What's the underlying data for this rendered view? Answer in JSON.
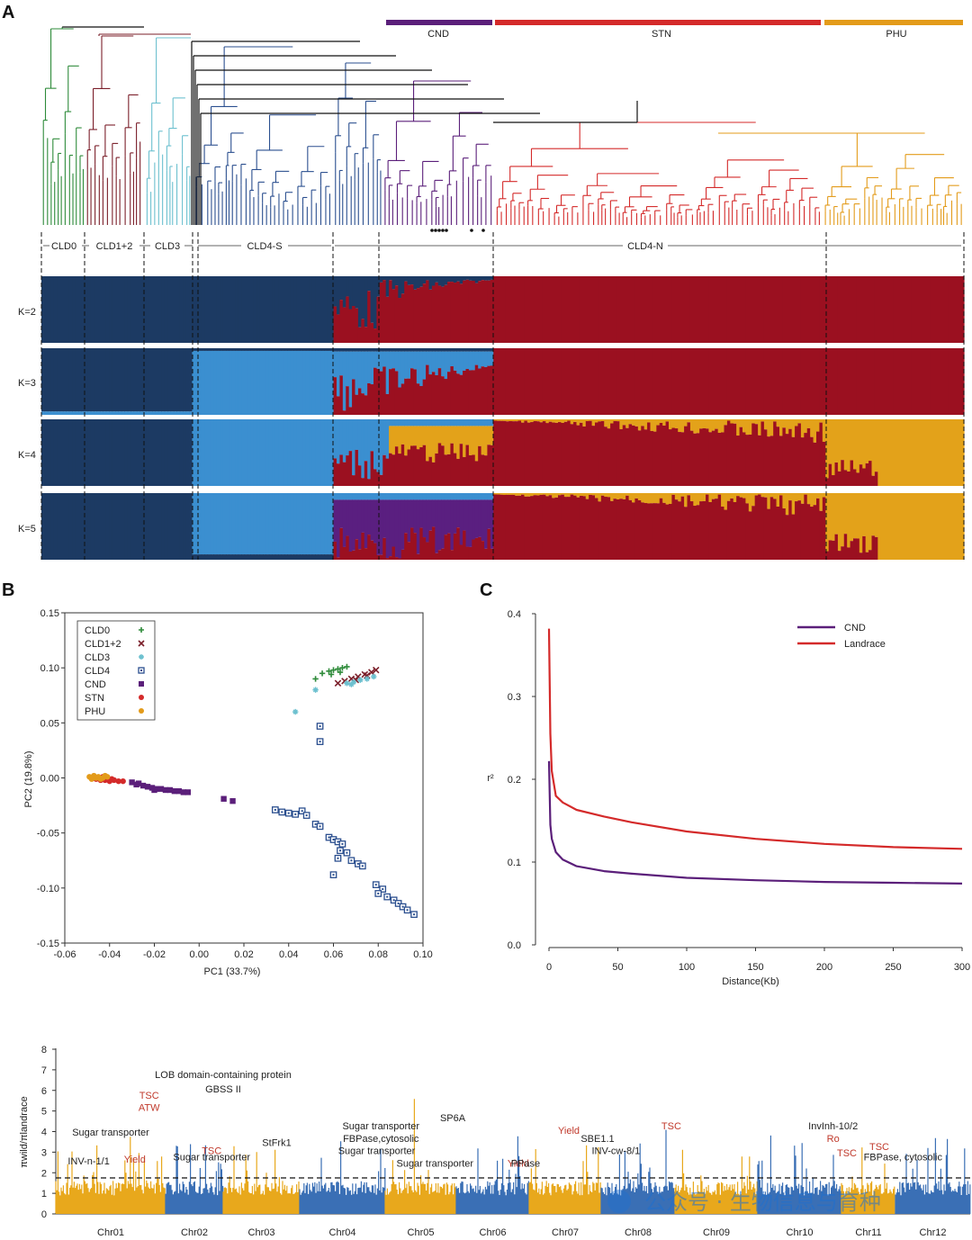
{
  "colors": {
    "cld0": "#2e8b3a",
    "cld12": "#7b1f2a",
    "cld3": "#6cc0cf",
    "cld4": "#2b4f8f",
    "cnd": "#5b1f7a",
    "stn": "#d42a2a",
    "phu": "#e39b1a",
    "k_navy": "#1c3a63",
    "k_sky": "#3b8fd0",
    "k_red": "#9b1020",
    "k_gold": "#e3a21a",
    "k_purple": "#5a1f80",
    "manh_gold": "#e8a81c",
    "manh_blue": "#3a6fb5"
  },
  "panelA": {
    "letter": "A",
    "groups_top": [
      "CND",
      "STN",
      "PHU"
    ],
    "clusters": [
      "CLD0",
      "CLD1+2",
      "CLD3",
      "CLD4-S",
      "CLD4-N"
    ],
    "k_labels": [
      "K=2",
      "K=3",
      "K=4",
      "K=5"
    ]
  },
  "panelB": {
    "letter": "B"
  },
  "panelC": {
    "letter": "C"
  },
  "chart_data": [
    {
      "type": "scatter",
      "id": "pca",
      "xlabel": "PC1 (33.7%)",
      "ylabel": "PC2 (19.8%)",
      "xlim": [
        -0.06,
        0.1
      ],
      "ylim": [
        -0.15,
        0.15
      ],
      "xticks": [
        "-0.06",
        "-0.04",
        "-0.02",
        "0.00",
        "0.02",
        "0.04",
        "0.06",
        "0.08",
        "0.10"
      ],
      "yticks": [
        "0.15",
        "0.10",
        "0.05",
        "0.00",
        "-0.05",
        "-0.10",
        "-0.15"
      ],
      "legend": [
        "CLD0",
        "CLD1+2",
        "CLD3",
        "CLD4",
        "CND",
        "STN",
        "PHU"
      ],
      "series": [
        {
          "name": "CLD0",
          "marker": "plus",
          "color": "#2e8b3a",
          "points": [
            [
              0.055,
              0.095
            ],
            [
              0.058,
              0.097
            ],
            [
              0.06,
              0.098
            ],
            [
              0.062,
              0.099
            ],
            [
              0.064,
              0.1
            ],
            [
              0.066,
              0.101
            ],
            [
              0.059,
              0.094
            ],
            [
              0.063,
              0.096
            ],
            [
              0.052,
              0.09
            ]
          ]
        },
        {
          "name": "CLD1+2",
          "marker": "x",
          "color": "#7b1f2a",
          "points": [
            [
              0.062,
              0.086
            ],
            [
              0.065,
              0.088
            ],
            [
              0.068,
              0.09
            ],
            [
              0.071,
              0.092
            ],
            [
              0.074,
              0.094
            ],
            [
              0.077,
              0.096
            ],
            [
              0.079,
              0.098
            ],
            [
              0.075,
              0.093
            ],
            [
              0.07,
              0.089
            ]
          ]
        },
        {
          "name": "CLD3",
          "marker": "star",
          "color": "#6cc0cf",
          "points": [
            [
              0.043,
              0.06
            ],
            [
              0.052,
              0.08
            ],
            [
              0.066,
              0.086
            ],
            [
              0.069,
              0.087
            ],
            [
              0.072,
              0.089
            ],
            [
              0.075,
              0.09
            ],
            [
              0.078,
              0.092
            ],
            [
              0.068,
              0.085
            ]
          ]
        },
        {
          "name": "CLD4",
          "marker": "square-open",
          "color": "#2b4f8f",
          "points": [
            [
              0.054,
              0.047
            ],
            [
              0.054,
              0.033
            ],
            [
              0.034,
              -0.029
            ],
            [
              0.037,
              -0.031
            ],
            [
              0.04,
              -0.032
            ],
            [
              0.043,
              -0.033
            ],
            [
              0.046,
              -0.03
            ],
            [
              0.048,
              -0.034
            ],
            [
              0.052,
              -0.042
            ],
            [
              0.054,
              -0.044
            ],
            [
              0.058,
              -0.054
            ],
            [
              0.06,
              -0.056
            ],
            [
              0.062,
              -0.058
            ],
            [
              0.064,
              -0.06
            ],
            [
              0.063,
              -0.066
            ],
            [
              0.066,
              -0.068
            ],
            [
              0.068,
              -0.075
            ],
            [
              0.071,
              -0.078
            ],
            [
              0.073,
              -0.08
            ],
            [
              0.062,
              -0.073
            ],
            [
              0.06,
              -0.088
            ],
            [
              0.079,
              -0.097
            ],
            [
              0.082,
              -0.101
            ],
            [
              0.08,
              -0.105
            ],
            [
              0.084,
              -0.108
            ],
            [
              0.087,
              -0.111
            ],
            [
              0.089,
              -0.114
            ],
            [
              0.091,
              -0.117
            ],
            [
              0.093,
              -0.12
            ],
            [
              0.096,
              -0.124
            ]
          ]
        },
        {
          "name": "CND",
          "marker": "square",
          "color": "#5b1f7a",
          "points": [
            [
              -0.03,
              -0.004
            ],
            [
              -0.027,
              -0.005
            ],
            [
              -0.025,
              -0.007
            ],
            [
              -0.023,
              -0.008
            ],
            [
              -0.021,
              -0.009
            ],
            [
              -0.019,
              -0.01
            ],
            [
              -0.017,
              -0.01
            ],
            [
              -0.015,
              -0.011
            ],
            [
              -0.013,
              -0.011
            ],
            [
              -0.011,
              -0.012
            ],
            [
              -0.009,
              -0.012
            ],
            [
              -0.007,
              -0.013
            ],
            [
              -0.005,
              -0.013
            ],
            [
              -0.028,
              -0.006
            ],
            [
              -0.02,
              -0.011
            ],
            [
              0.011,
              -0.019
            ],
            [
              0.015,
              -0.021
            ]
          ]
        },
        {
          "name": "STN",
          "marker": "circle",
          "color": "#d42a2a",
          "points": [
            [
              -0.048,
              0.0
            ],
            [
              -0.046,
              -0.001
            ],
            [
              -0.044,
              -0.002
            ],
            [
              -0.042,
              -0.002
            ],
            [
              -0.04,
              -0.003
            ],
            [
              -0.038,
              -0.002
            ],
            [
              -0.036,
              -0.003
            ],
            [
              -0.034,
              -0.003
            ],
            [
              -0.043,
              0.001
            ],
            [
              -0.039,
              -0.001
            ]
          ]
        },
        {
          "name": "PHU",
          "marker": "circle",
          "color": "#e39b1a",
          "points": [
            [
              -0.049,
              0.001
            ],
            [
              -0.047,
              0.002
            ],
            [
              -0.045,
              0.001
            ],
            [
              -0.043,
              0.0
            ],
            [
              -0.041,
              0.001
            ],
            [
              -0.046,
              0.0
            ],
            [
              -0.044,
              -0.001
            ],
            [
              -0.048,
              -0.001
            ],
            [
              -0.042,
              0.002
            ]
          ]
        }
      ]
    },
    {
      "type": "line",
      "id": "ld",
      "xlabel": "Distance(Kb)",
      "ylabel": "r²",
      "xlim": [
        0,
        300
      ],
      "ylim": [
        0.0,
        0.4
      ],
      "xticks": [
        "0",
        "50",
        "100",
        "150",
        "200",
        "250",
        "300"
      ],
      "yticks": [
        "0.4",
        "0.3",
        "0.2",
        "0.1",
        "0.0"
      ],
      "series": [
        {
          "name": "CND",
          "color": "#5b1f7a",
          "x": [
            0,
            1,
            2,
            5,
            10,
            20,
            40,
            60,
            100,
            150,
            200,
            250,
            300
          ],
          "values": [
            0.222,
            0.145,
            0.128,
            0.112,
            0.103,
            0.095,
            0.089,
            0.086,
            0.081,
            0.078,
            0.076,
            0.075,
            0.074
          ]
        },
        {
          "name": "Landrace",
          "color": "#d42a2a",
          "x": [
            0,
            1,
            2,
            5,
            10,
            20,
            40,
            60,
            100,
            150,
            200,
            250,
            300
          ],
          "values": [
            0.382,
            0.255,
            0.21,
            0.18,
            0.172,
            0.163,
            0.155,
            0.148,
            0.137,
            0.128,
            0.122,
            0.118,
            0.116
          ]
        }
      ]
    },
    {
      "type": "bar",
      "id": "diversity",
      "ylabel": "πwild/πlandrace",
      "ylim": [
        0,
        8
      ],
      "yticks": [
        "8",
        "7",
        "6",
        "5",
        "4",
        "3",
        "2",
        "1",
        "0"
      ],
      "threshold": 1.75,
      "categories": [
        "Chr01",
        "Chr02",
        "Chr03",
        "Chr04",
        "Chr05",
        "Chr06",
        "Chr07",
        "Chr08",
        "Chr09",
        "Chr10",
        "Chr11",
        "Chr12"
      ],
      "annotations": [
        {
          "text": "TSC",
          "red": true,
          "chr": "Chr01",
          "pos": 0.85,
          "y": 5.6
        },
        {
          "text": "ATW",
          "red": true,
          "chr": "Chr01",
          "pos": 0.85,
          "y": 5.0
        },
        {
          "text": "Sugar transporter",
          "red": false,
          "chr": "Chr01",
          "pos": 0.5,
          "y": 3.8
        },
        {
          "text": "Yield",
          "red": true,
          "chr": "Chr01",
          "pos": 0.72,
          "y": 2.5
        },
        {
          "text": "INV-n-1/1",
          "red": false,
          "chr": "Chr01",
          "pos": 0.3,
          "y": 2.4
        },
        {
          "text": "TSC",
          "red": true,
          "chr": "Chr02",
          "pos": 0.8,
          "y": 2.9
        },
        {
          "text": "Sugar transporter",
          "red": false,
          "chr": "Chr02",
          "pos": 0.8,
          "y": 2.6
        },
        {
          "text": "LOB domain-containing protein",
          "red": false,
          "chr": "Chr02",
          "pos": 1.0,
          "y": 6.6
        },
        {
          "text": "GBSS II",
          "red": false,
          "chr": "Chr02",
          "pos": 1.0,
          "y": 5.9
        },
        {
          "text": "StFrk1",
          "red": false,
          "chr": "Chr03",
          "pos": 0.7,
          "y": 3.3
        },
        {
          "text": "Sugar transporter",
          "red": false,
          "chr": "Chr04",
          "pos": 0.95,
          "y": 4.1
        },
        {
          "text": "FBPase,cytosolic",
          "red": false,
          "chr": "Chr04",
          "pos": 0.95,
          "y": 3.5
        },
        {
          "text": "Sugar transporter",
          "red": false,
          "chr": "Chr04",
          "pos": 0.9,
          "y": 2.9
        },
        {
          "text": "SP6A",
          "red": false,
          "chr": "Chr05",
          "pos": 0.95,
          "y": 4.5
        },
        {
          "text": "Sugar transporter",
          "red": false,
          "chr": "Chr05",
          "pos": 0.7,
          "y": 2.3
        },
        {
          "text": "Yield",
          "red": true,
          "chr": "Chr06",
          "pos": 0.85,
          "y": 2.3
        },
        {
          "text": "PPase",
          "red": false,
          "chr": "Chr06",
          "pos": 0.95,
          "y": 2.3
        },
        {
          "text": "Yield",
          "red": true,
          "chr": "Chr07",
          "pos": 0.55,
          "y": 3.9
        },
        {
          "text": "SBE1.1",
          "red": false,
          "chr": "Chr07",
          "pos": 0.95,
          "y": 3.5
        },
        {
          "text": "INV-cw-8/1",
          "red": false,
          "chr": "Chr08",
          "pos": 0.2,
          "y": 2.9
        },
        {
          "text": "TSC",
          "red": true,
          "chr": "Chr08",
          "pos": 0.95,
          "y": 4.1
        },
        {
          "text": "InvInh-10/2",
          "red": false,
          "chr": "Chr10",
          "pos": 0.9,
          "y": 4.1
        },
        {
          "text": "Ro",
          "red": true,
          "chr": "Chr10",
          "pos": 0.9,
          "y": 3.5
        },
        {
          "text": "TSC",
          "red": true,
          "chr": "Chr11",
          "pos": 0.1,
          "y": 2.8
        },
        {
          "text": "TSC",
          "red": true,
          "chr": "Chr11",
          "pos": 0.7,
          "y": 3.1
        },
        {
          "text": "FBPase, cytosolic",
          "red": false,
          "chr": "Chr12",
          "pos": 0.1,
          "y": 2.6
        }
      ]
    }
  ],
  "watermark": "公众号 · 生物信息与育种"
}
